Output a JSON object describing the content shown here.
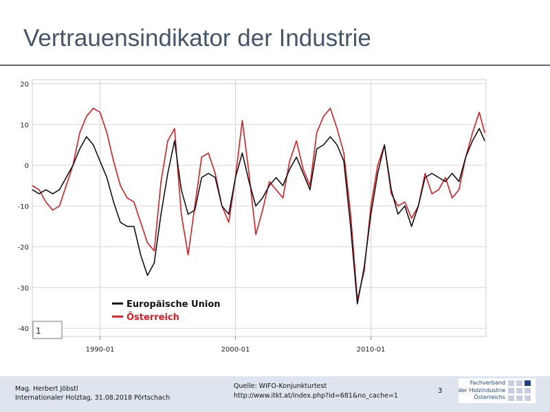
{
  "slide": {
    "title": "Vertrauensindikator der Industrie",
    "footer_author": "Mag. Herbert Jöbstl",
    "footer_event": "Internationaler Holztag, 31.08.2018 Pörtschach",
    "source_label": "Quelle: WIFO-Konjunkturtest",
    "source_url": "http://www.itkt.at/index.php?id=681&no_cache=1",
    "page_number": "3",
    "logo_line1": "Fachverband",
    "logo_line2": "der Holzindustrie",
    "logo_line3": "Österreichs"
  },
  "chart_data": {
    "type": "line",
    "y_tick_labels": [
      "20",
      "10",
      "0",
      "-10",
      "-20",
      "-30",
      "-40"
    ],
    "x_tick_labels": [
      "1990-01",
      "2000-01",
      "2010-01"
    ],
    "ylim": [
      -42,
      21
    ],
    "xlim": [
      1985,
      2018.5
    ],
    "grid": true,
    "legend_position": "bottom-left",
    "box_label": "1",
    "colors": {
      "Europäische Union": "#111111",
      "Österreich": "#e0191f"
    },
    "series": [
      {
        "name": "Europäische Union",
        "color": "#111111",
        "x": [
          1985.0,
          1985.5,
          1986.0,
          1986.5,
          1987.0,
          1987.5,
          1988.0,
          1988.5,
          1989.0,
          1989.5,
          1990.0,
          1990.5,
          1991.0,
          1991.5,
          1992.0,
          1992.5,
          1993.0,
          1993.5,
          1994.0,
          1994.5,
          1995.0,
          1995.5,
          1996.0,
          1996.5,
          1997.0,
          1997.5,
          1998.0,
          1998.5,
          1999.0,
          1999.5,
          2000.0,
          2000.5,
          2001.0,
          2001.5,
          2002.0,
          2002.5,
          2003.0,
          2003.5,
          2004.0,
          2004.5,
          2005.0,
          2005.5,
          2006.0,
          2006.5,
          2007.0,
          2007.5,
          2008.0,
          2008.5,
          2009.0,
          2009.5,
          2010.0,
          2010.5,
          2011.0,
          2011.5,
          2012.0,
          2012.5,
          2013.0,
          2013.5,
          2014.0,
          2014.5,
          2015.0,
          2015.5,
          2016.0,
          2016.5,
          2017.0,
          2017.5,
          2018.0,
          2018.4
        ],
        "values": [
          -6,
          -7,
          -6,
          -7,
          -6,
          -3,
          0,
          4,
          7,
          5,
          1,
          -3,
          -9,
          -14,
          -15,
          -15,
          -22,
          -27,
          -24,
          -12,
          -2,
          6,
          -6,
          -12,
          -11,
          -3,
          -2,
          -3,
          -10,
          -12,
          -3,
          3,
          -4,
          -10,
          -8,
          -5,
          -3,
          -5,
          -1,
          2,
          -2,
          -6,
          4,
          5,
          7,
          5,
          1,
          -15,
          -34,
          -25,
          -12,
          -2,
          5,
          -6,
          -12,
          -10,
          -15,
          -10,
          -3,
          -2,
          -3,
          -4,
          -2,
          -4,
          2,
          6,
          9,
          6
        ]
      },
      {
        "name": "Österreich",
        "color": "#e0191f",
        "x": [
          1985.0,
          1985.5,
          1986.0,
          1986.5,
          1987.0,
          1987.5,
          1988.0,
          1988.5,
          1989.0,
          1989.5,
          1990.0,
          1990.5,
          1991.0,
          1991.5,
          1992.0,
          1992.5,
          1993.0,
          1993.5,
          1994.0,
          1994.5,
          1995.0,
          1995.5,
          1996.0,
          1996.5,
          1997.0,
          1997.5,
          1998.0,
          1998.5,
          1999.0,
          1999.5,
          2000.0,
          2000.5,
          2001.0,
          2001.5,
          2002.0,
          2002.5,
          2003.0,
          2003.5,
          2004.0,
          2004.5,
          2005.0,
          2005.5,
          2006.0,
          2006.5,
          2007.0,
          2007.5,
          2008.0,
          2008.5,
          2009.0,
          2009.5,
          2010.0,
          2010.5,
          2011.0,
          2011.5,
          2012.0,
          2012.5,
          2013.0,
          2013.5,
          2014.0,
          2014.5,
          2015.0,
          2015.5,
          2016.0,
          2016.5,
          2017.0,
          2017.5,
          2018.0,
          2018.4
        ],
        "values": [
          -5,
          -6,
          -9,
          -11,
          -10,
          -5,
          0,
          8,
          12,
          14,
          13,
          8,
          1,
          -5,
          -8,
          -9,
          -14,
          -19,
          -21,
          -4,
          6,
          9,
          -12,
          -22,
          -10,
          2,
          3,
          -2,
          -10,
          -14,
          -3,
          11,
          -2,
          -17,
          -11,
          -4,
          -6,
          -8,
          1,
          6,
          -1,
          -5,
          8,
          12,
          14,
          9,
          3,
          -12,
          -33,
          -26,
          -10,
          0,
          5,
          -7,
          -10,
          -9,
          -13,
          -10,
          -2,
          -7,
          -6,
          -3,
          -8,
          -6,
          2,
          8,
          13,
          8
        ]
      }
    ]
  }
}
